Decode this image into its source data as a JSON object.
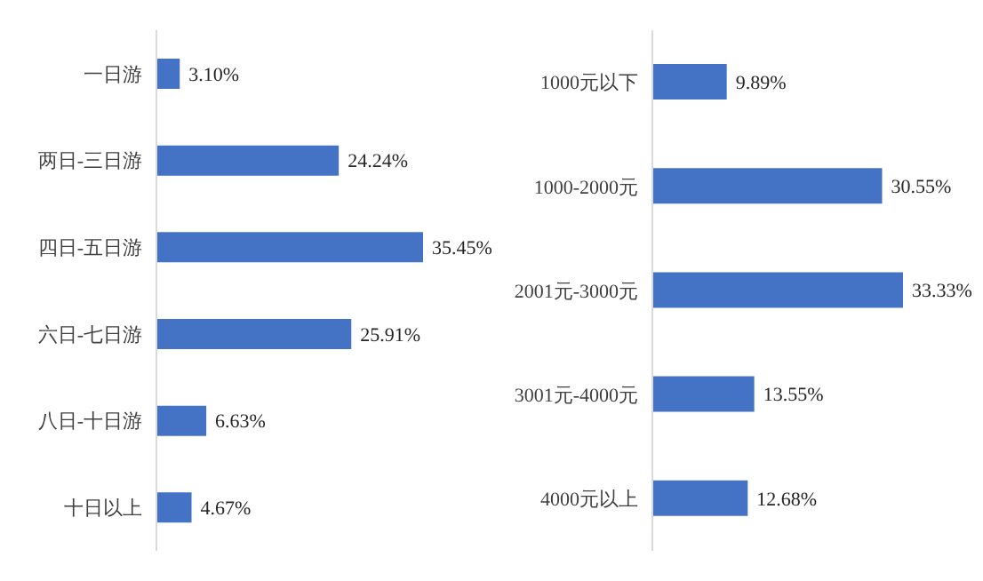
{
  "chart_data": [
    {
      "type": "bar",
      "orientation": "horizontal",
      "categories": [
        "一日游",
        "两日-三日游",
        "四日-五日游",
        "六日-七日游",
        "八日-十日游",
        "十日以上"
      ],
      "values": [
        3.1,
        24.24,
        35.45,
        25.91,
        6.63,
        4.67
      ],
      "value_labels": [
        "3.10%",
        "24.24%",
        "35.45%",
        "25.91%",
        "6.63%",
        "4.67%"
      ],
      "color": "#4472c4"
    },
    {
      "type": "bar",
      "orientation": "horizontal",
      "categories": [
        "1000元以下",
        "1000-2000元",
        "2001元-3000元",
        "3001元-4000元",
        "4000元以上"
      ],
      "values": [
        9.89,
        30.55,
        33.33,
        13.55,
        12.68
      ],
      "value_labels": [
        "9.89%",
        "30.55%",
        "33.33%",
        "13.55%",
        "12.68%"
      ],
      "color": "#4472c4"
    }
  ]
}
